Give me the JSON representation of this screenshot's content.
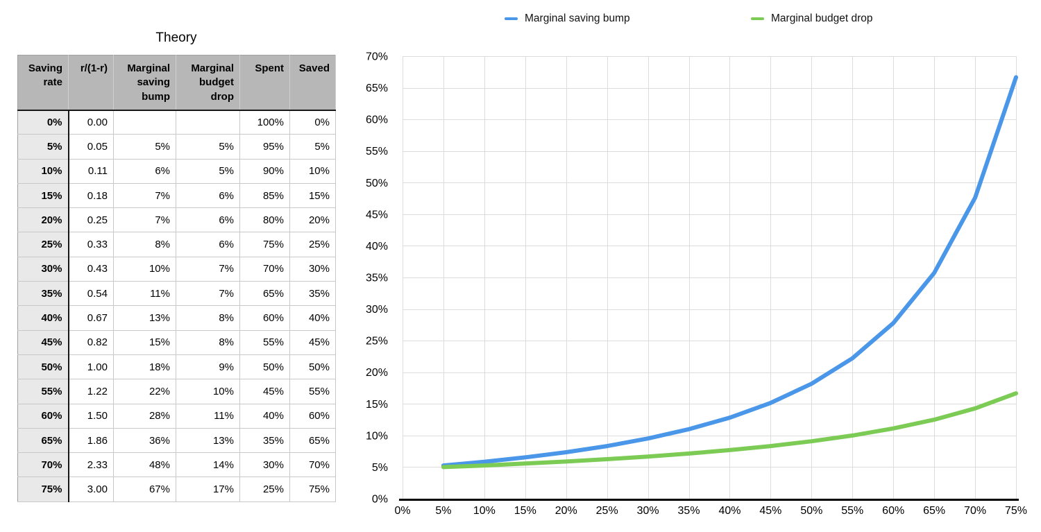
{
  "table": {
    "title": "Theory",
    "columns": [
      "Saving rate",
      "r/(1-r)",
      "Marginal saving bump",
      "Marginal budget drop",
      "Spent",
      "Saved"
    ],
    "rows": [
      [
        "0%",
        "0.00",
        "",
        "",
        "100%",
        "0%"
      ],
      [
        "5%",
        "0.05",
        "5%",
        "5%",
        "95%",
        "5%"
      ],
      [
        "10%",
        "0.11",
        "6%",
        "5%",
        "90%",
        "10%"
      ],
      [
        "15%",
        "0.18",
        "7%",
        "6%",
        "85%",
        "15%"
      ],
      [
        "20%",
        "0.25",
        "7%",
        "6%",
        "80%",
        "20%"
      ],
      [
        "25%",
        "0.33",
        "8%",
        "6%",
        "75%",
        "25%"
      ],
      [
        "30%",
        "0.43",
        "10%",
        "7%",
        "70%",
        "30%"
      ],
      [
        "35%",
        "0.54",
        "11%",
        "7%",
        "65%",
        "35%"
      ],
      [
        "40%",
        "0.67",
        "13%",
        "8%",
        "60%",
        "40%"
      ],
      [
        "45%",
        "0.82",
        "15%",
        "8%",
        "55%",
        "45%"
      ],
      [
        "50%",
        "1.00",
        "18%",
        "9%",
        "50%",
        "50%"
      ],
      [
        "55%",
        "1.22",
        "22%",
        "10%",
        "45%",
        "55%"
      ],
      [
        "60%",
        "1.50",
        "28%",
        "11%",
        "40%",
        "60%"
      ],
      [
        "65%",
        "1.86",
        "36%",
        "13%",
        "35%",
        "65%"
      ],
      [
        "70%",
        "2.33",
        "48%",
        "14%",
        "30%",
        "70%"
      ],
      [
        "75%",
        "3.00",
        "67%",
        "17%",
        "25%",
        "75%"
      ]
    ]
  },
  "chart_data": {
    "type": "line",
    "x": [
      5,
      10,
      15,
      20,
      25,
      30,
      35,
      40,
      45,
      50,
      55,
      60,
      65,
      70,
      75
    ],
    "series": [
      {
        "name": "Marginal saving bump",
        "color": "#4a96e8",
        "values": [
          5.26,
          5.85,
          6.54,
          7.35,
          8.33,
          9.52,
          10.99,
          12.82,
          15.15,
          18.18,
          22.22,
          27.78,
          35.71,
          47.62,
          66.67
        ]
      },
      {
        "name": "Marginal budget drop",
        "color": "#7ccb55",
        "values": [
          5.0,
          5.26,
          5.56,
          5.88,
          6.25,
          6.67,
          7.14,
          7.69,
          8.33,
          9.09,
          10.0,
          11.11,
          12.5,
          14.29,
          16.67
        ]
      }
    ],
    "xlim": [
      0,
      75
    ],
    "ylim": [
      0,
      70
    ],
    "x_tick_labels": [
      "0%",
      "5%",
      "10%",
      "15%",
      "20%",
      "25%",
      "30%",
      "35%",
      "40%",
      "45%",
      "50%",
      "55%",
      "60%",
      "65%",
      "70%",
      "75%"
    ],
    "y_tick_labels": [
      "0%",
      "5%",
      "10%",
      "15%",
      "20%",
      "25%",
      "30%",
      "35%",
      "40%",
      "45%",
      "50%",
      "55%",
      "60%",
      "65%",
      "70%"
    ],
    "grid": true,
    "legend_position": "top",
    "grid_color": "#dcdcdc",
    "axis_color": "#000000"
  }
}
